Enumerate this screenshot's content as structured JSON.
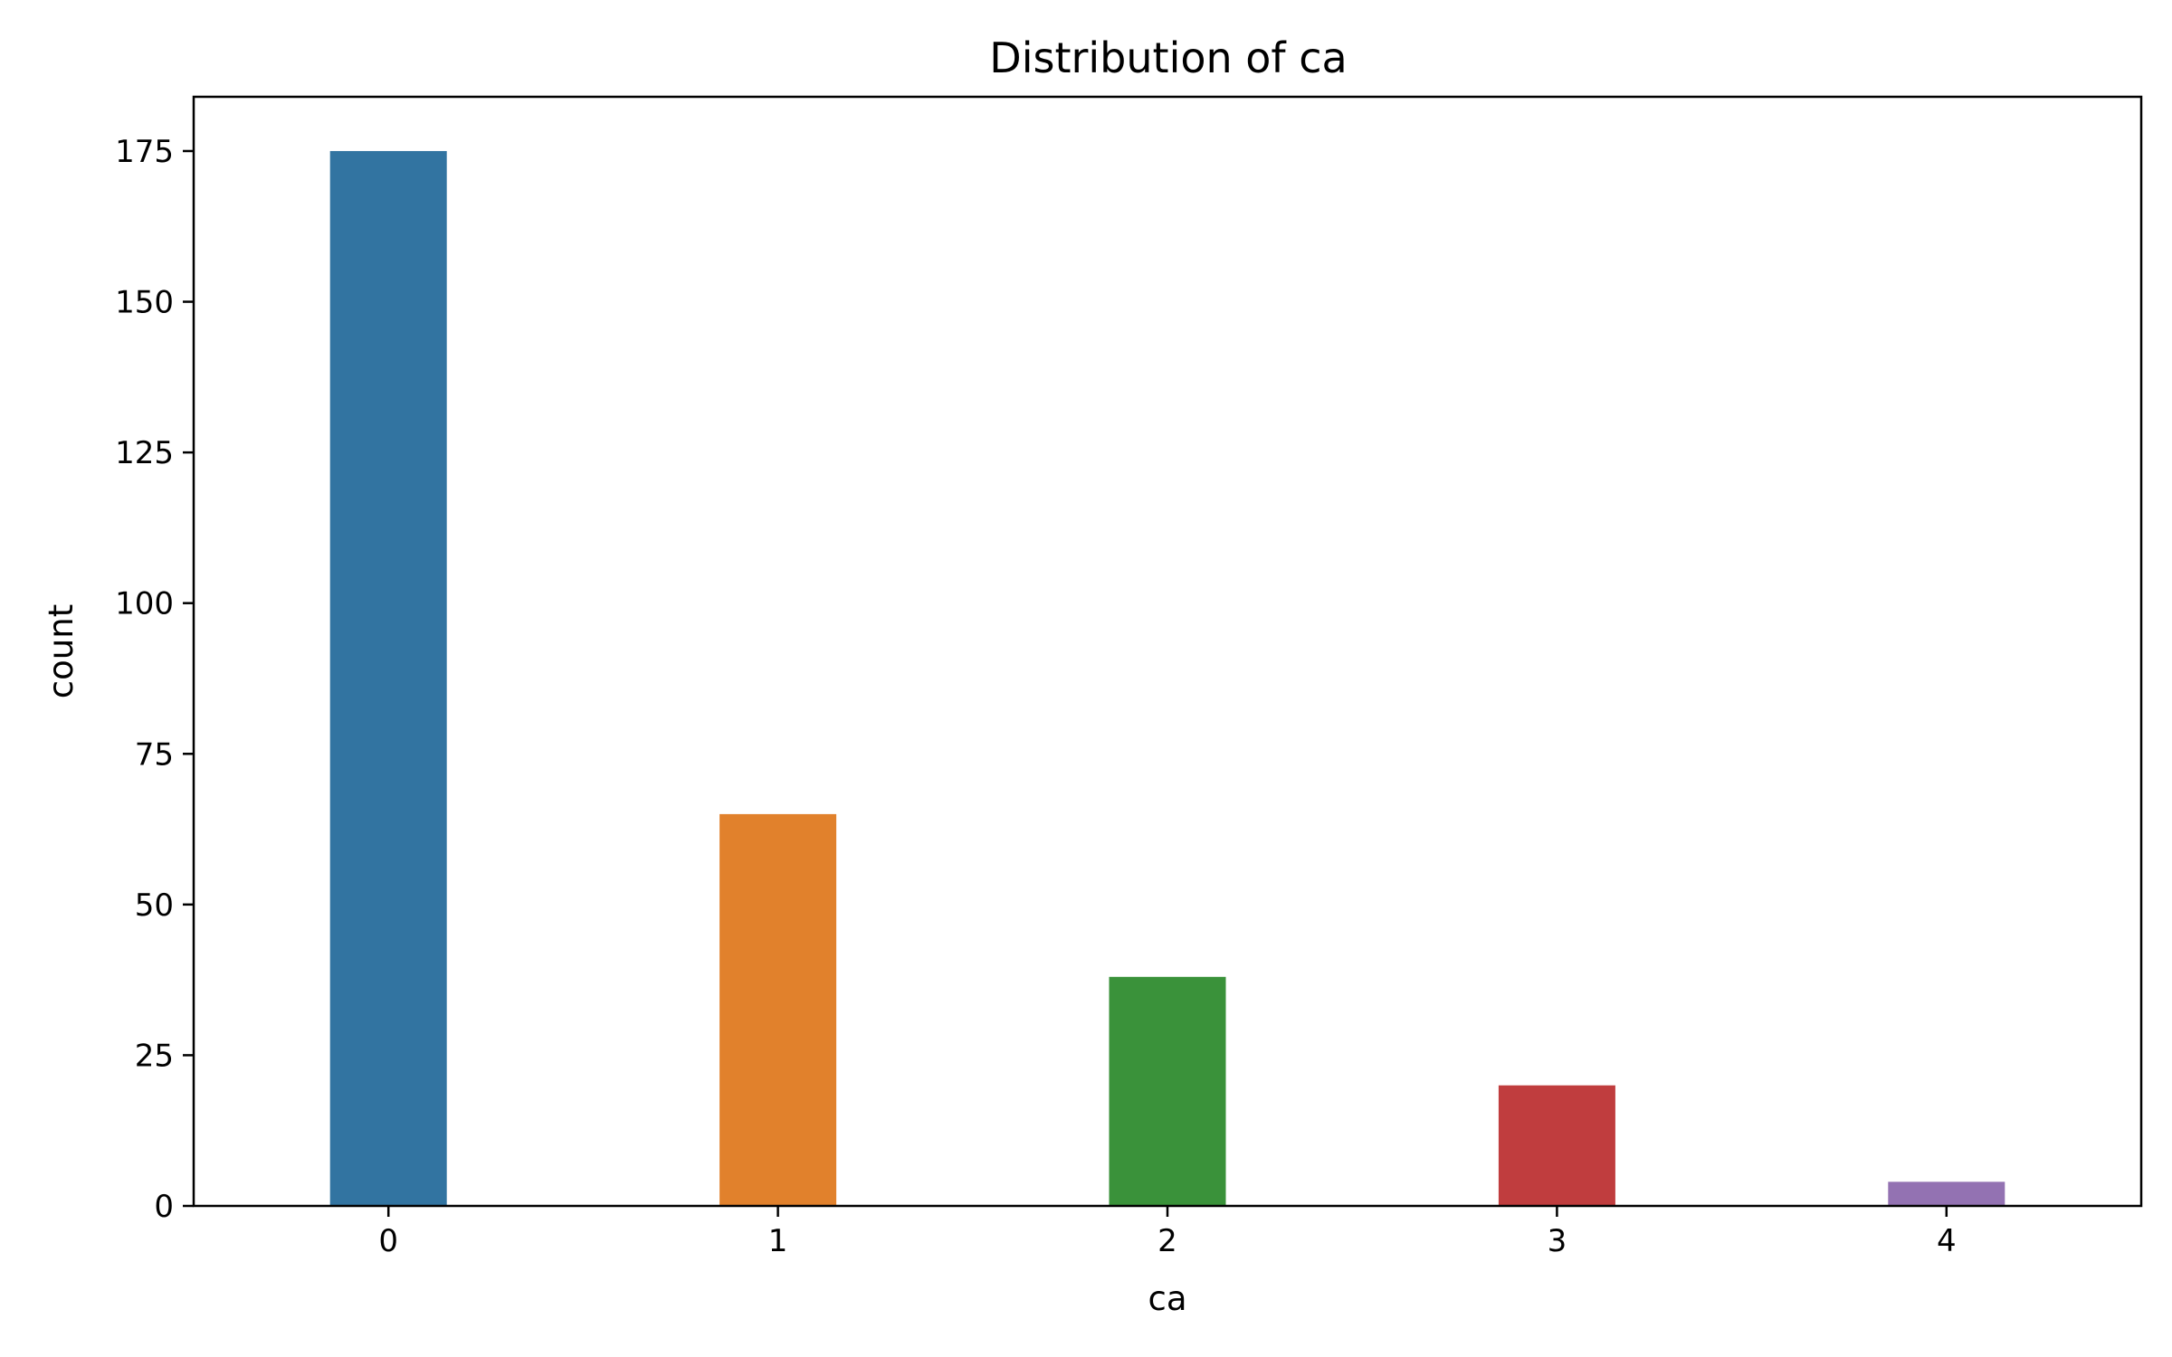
{
  "chart_data": {
    "type": "bar",
    "title": "Distribution of ca",
    "xlabel": "ca",
    "ylabel": "count",
    "categories": [
      "0",
      "1",
      "2",
      "3",
      "4"
    ],
    "values": [
      175,
      65,
      38,
      20,
      4
    ],
    "colors": [
      "#3274a1",
      "#e1812c",
      "#3a923a",
      "#c03d3e",
      "#9372b2"
    ],
    "ylim": [
      0,
      184
    ],
    "yticks": [
      0,
      25,
      50,
      75,
      100,
      125,
      150,
      175
    ],
    "ytick_labels": [
      "0",
      "25",
      "50",
      "75",
      "100",
      "125",
      "150",
      "175"
    ],
    "grid": false,
    "legend": "none"
  }
}
